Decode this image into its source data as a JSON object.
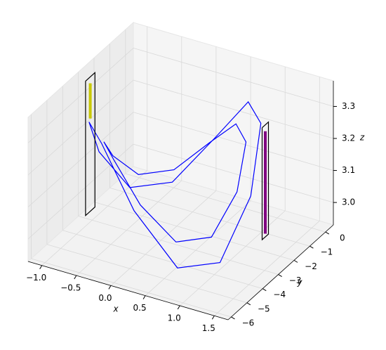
{
  "chart_data": {
    "type": "line3d",
    "xlabel": "x",
    "ylabel": "y",
    "zlabel": "z",
    "xlim": [
      -1.2,
      1.7
    ],
    "ylim": [
      -6.2,
      0.5
    ],
    "zlim": [
      2.93,
      3.38
    ],
    "xticks": [
      {
        "value": -1.0,
        "label": "−1.0"
      },
      {
        "value": -0.5,
        "label": "−0.5"
      },
      {
        "value": 0,
        "label": "0.0"
      },
      0.5,
      {
        "value": 1.0,
        "label": "1.0"
      },
      1.5
    ],
    "yticks": [
      0,
      {
        "value": -1,
        "label": "−1"
      },
      {
        "value": -2,
        "label": "−2"
      },
      {
        "value": -3,
        "label": "−3"
      },
      {
        "value": -4,
        "label": "−4"
      },
      {
        "value": -5,
        "label": "−5"
      },
      {
        "value": -6,
        "label": "−6"
      }
    ],
    "zticks": [
      {
        "value": 3.0,
        "label": "3.0"
      },
      3.1,
      3.2,
      3.3
    ],
    "grid": true,
    "series": [
      {
        "color": "#0000ff",
        "x": [
          1.3,
          1.15,
          0.75,
          0.2,
          -0.35,
          -0.75,
          -0.9,
          -0.75,
          -0.35,
          0.2,
          0.75,
          1.15,
          1.3
        ],
        "y": [
          -3,
          -1.7,
          -0.75,
          -0.4,
          -0.75,
          -1.7,
          -3,
          -4.3,
          -5.25,
          -5.6,
          -5.25,
          -4.3,
          -3
        ],
        "z": [
          3.15,
          3.31,
          3.31,
          3.15,
          2.99,
          2.99,
          3.15,
          3.31,
          3.31,
          3.15,
          2.99,
          2.99,
          3.15
        ]
      },
      {
        "color": "#0000ff",
        "x": [
          1.1,
          0.98,
          0.65,
          0.2,
          -0.25,
          -0.58,
          -0.7,
          -0.58,
          -0.25,
          0.2,
          0.65,
          0.98,
          1.1
        ],
        "y": [
          -3,
          -1.9,
          -1.09,
          -0.8,
          -1.09,
          -1.9,
          -3,
          -4.1,
          -4.91,
          -5.2,
          -4.91,
          -4.1,
          -3
        ],
        "z": [
          3.15,
          3.25,
          3.25,
          3.15,
          3.05,
          3.05,
          3.15,
          3.25,
          3.25,
          3.15,
          3.05,
          3.05,
          3.15
        ]
      },
      {
        "color": "#000000",
        "x": [
          -1.05,
          -1.05,
          -1.05,
          -1.05,
          -1.05
        ],
        "y": [
          -3.2,
          -2.6,
          -2.6,
          -3.2,
          -3.2
        ],
        "z": [
          3.37,
          3.37,
          2.95,
          2.95,
          3.37
        ]
      },
      {
        "color": "#000000",
        "x": [
          1.1,
          1.1,
          1.1,
          1.1,
          1.1
        ],
        "y": [
          -1.4,
          -1.0,
          -1.0,
          -1.4,
          -1.4
        ],
        "z": [
          3.28,
          3.28,
          2.93,
          2.93,
          3.28
        ]
      },
      {
        "color": "#c8c800",
        "x": [
          -1.05,
          -1.05
        ],
        "y": [
          -2.9,
          -2.9
        ],
        "z": [
          3.35,
          3.24
        ]
      },
      {
        "color": "#800080",
        "x": [
          1.1,
          1.1
        ],
        "y": [
          -1.2,
          -1.2
        ],
        "z": [
          3.26,
          2.94
        ]
      }
    ]
  }
}
